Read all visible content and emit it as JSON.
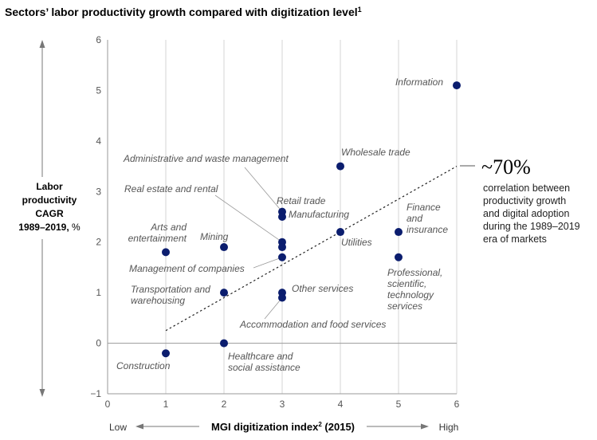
{
  "chart_data": {
    "type": "scatter",
    "title": "Sectors’ labor productivity growth compared with digitization level",
    "title_footnote": "1",
    "ylabel_lines": [
      "Labor",
      "productivity",
      "CAGR",
      "1989–2019,"
    ],
    "ylabel_unit": "%",
    "xlabel": "MGI digitization index",
    "xlabel_footnote": "2",
    "xlabel_suffix": "(2015)",
    "x_low_label": "Low",
    "x_high_label": "High",
    "xlim": [
      0,
      6
    ],
    "ylim": [
      -1,
      6
    ],
    "xticks": [
      0,
      1,
      2,
      3,
      4,
      5,
      6
    ],
    "yticks": [
      -1,
      0,
      1,
      2,
      3,
      4,
      5,
      6
    ],
    "point_color": "#0b1d6e",
    "points": [
      {
        "label": "Information",
        "x": 6,
        "y": 5.1
      },
      {
        "label": "Wholesale trade",
        "x": 4,
        "y": 3.5
      },
      {
        "label": "Administrative and waste management",
        "x": 3,
        "y": 2.6
      },
      {
        "label": "Retail trade",
        "x": 3,
        "y": 2.5
      },
      {
        "label": "Real estate and rental",
        "x": 3,
        "y": 2.0
      },
      {
        "label": "Manufacturing",
        "x": 3,
        "y": 1.9
      },
      {
        "label": "Management of companies",
        "x": 3,
        "y": 1.7
      },
      {
        "label": "Utilities",
        "x": 4,
        "y": 2.2
      },
      {
        "label": "Finance and insurance",
        "x": 5,
        "y": 2.2
      },
      {
        "label": "Professional, scientific, technology services",
        "x": 5,
        "y": 1.7
      },
      {
        "label": "Arts and entertainment",
        "x": 1,
        "y": 1.8
      },
      {
        "label": "Mining",
        "x": 2,
        "y": 1.9
      },
      {
        "label": "Transportation and warehousing",
        "x": 2,
        "y": 1.0
      },
      {
        "label": "Other services",
        "x": 3,
        "y": 1.0
      },
      {
        "label": "Accommodation and food services",
        "x": 3,
        "y": 0.9
      },
      {
        "label": "Healthcare and social assistance",
        "x": 2,
        "y": 0.0
      },
      {
        "label": "Construction",
        "x": 1,
        "y": -0.2
      }
    ],
    "trendline": {
      "x0": 1,
      "y0": 0.25,
      "x1": 6,
      "y1": 3.5
    },
    "callout": {
      "value": "~70%",
      "lines": [
        "correlation between",
        "productivity growth",
        "and digital adoption",
        "during the 1989–2019",
        "era of markets"
      ]
    }
  }
}
